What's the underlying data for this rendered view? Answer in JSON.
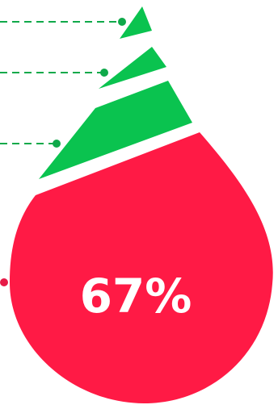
{
  "chart_data": {
    "type": "infographic-drop",
    "segments": [
      {
        "name": "",
        "value": null,
        "color": "#0ac34f",
        "label_visible": false
      },
      {
        "name": "",
        "value": null,
        "color": "#0ac34f",
        "label_visible": false
      },
      {
        "name": "",
        "value": null,
        "color": "#0ac34f",
        "label_visible": false
      },
      {
        "name": "",
        "value": 67,
        "display": "67%",
        "color": "#ff1a45",
        "label_visible": true
      }
    ]
  },
  "colors": {
    "green": "#0ac34f",
    "green_leader": "#0fa94a",
    "red": "#ff1a45",
    "white": "#ffffff"
  }
}
